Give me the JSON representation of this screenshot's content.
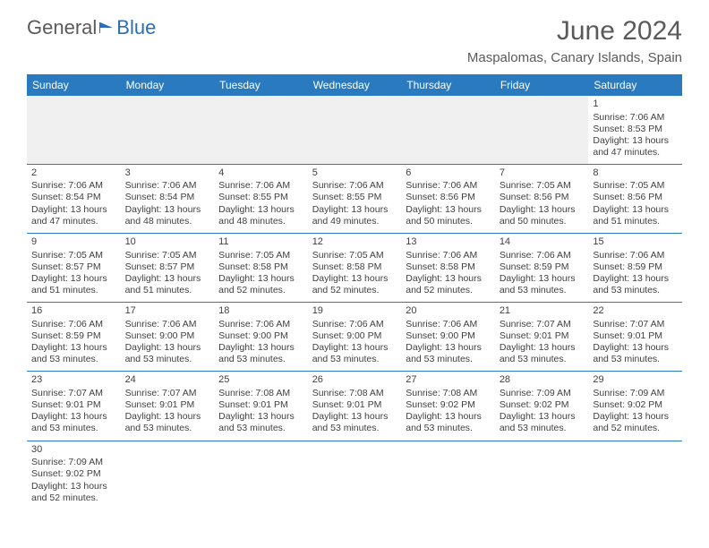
{
  "logo": {
    "text1": "General",
    "text2": "Blue"
  },
  "title": "June 2024",
  "location": "Maspalomas, Canary Islands, Spain",
  "header_bg": "#2a7ac0",
  "header_fg": "#ffffff",
  "border_color": "#2a7ac0",
  "text_color": "#404040",
  "title_color": "#5a5a5a",
  "blank_bg": "#f0f0f0",
  "weekdays": [
    "Sunday",
    "Monday",
    "Tuesday",
    "Wednesday",
    "Thursday",
    "Friday",
    "Saturday"
  ],
  "weeks": [
    [
      null,
      null,
      null,
      null,
      null,
      null,
      {
        "d": "1",
        "sr": "7:06 AM",
        "ss": "8:53 PM",
        "dl": "13 hours and 47 minutes."
      }
    ],
    [
      {
        "d": "2",
        "sr": "7:06 AM",
        "ss": "8:54 PM",
        "dl": "13 hours and 47 minutes."
      },
      {
        "d": "3",
        "sr": "7:06 AM",
        "ss": "8:54 PM",
        "dl": "13 hours and 48 minutes."
      },
      {
        "d": "4",
        "sr": "7:06 AM",
        "ss": "8:55 PM",
        "dl": "13 hours and 48 minutes."
      },
      {
        "d": "5",
        "sr": "7:06 AM",
        "ss": "8:55 PM",
        "dl": "13 hours and 49 minutes."
      },
      {
        "d": "6",
        "sr": "7:06 AM",
        "ss": "8:56 PM",
        "dl": "13 hours and 50 minutes."
      },
      {
        "d": "7",
        "sr": "7:05 AM",
        "ss": "8:56 PM",
        "dl": "13 hours and 50 minutes."
      },
      {
        "d": "8",
        "sr": "7:05 AM",
        "ss": "8:56 PM",
        "dl": "13 hours and 51 minutes."
      }
    ],
    [
      {
        "d": "9",
        "sr": "7:05 AM",
        "ss": "8:57 PM",
        "dl": "13 hours and 51 minutes."
      },
      {
        "d": "10",
        "sr": "7:05 AM",
        "ss": "8:57 PM",
        "dl": "13 hours and 51 minutes."
      },
      {
        "d": "11",
        "sr": "7:05 AM",
        "ss": "8:58 PM",
        "dl": "13 hours and 52 minutes."
      },
      {
        "d": "12",
        "sr": "7:05 AM",
        "ss": "8:58 PM",
        "dl": "13 hours and 52 minutes."
      },
      {
        "d": "13",
        "sr": "7:06 AM",
        "ss": "8:58 PM",
        "dl": "13 hours and 52 minutes."
      },
      {
        "d": "14",
        "sr": "7:06 AM",
        "ss": "8:59 PM",
        "dl": "13 hours and 53 minutes."
      },
      {
        "d": "15",
        "sr": "7:06 AM",
        "ss": "8:59 PM",
        "dl": "13 hours and 53 minutes."
      }
    ],
    [
      {
        "d": "16",
        "sr": "7:06 AM",
        "ss": "8:59 PM",
        "dl": "13 hours and 53 minutes."
      },
      {
        "d": "17",
        "sr": "7:06 AM",
        "ss": "9:00 PM",
        "dl": "13 hours and 53 minutes."
      },
      {
        "d": "18",
        "sr": "7:06 AM",
        "ss": "9:00 PM",
        "dl": "13 hours and 53 minutes."
      },
      {
        "d": "19",
        "sr": "7:06 AM",
        "ss": "9:00 PM",
        "dl": "13 hours and 53 minutes."
      },
      {
        "d": "20",
        "sr": "7:06 AM",
        "ss": "9:00 PM",
        "dl": "13 hours and 53 minutes."
      },
      {
        "d": "21",
        "sr": "7:07 AM",
        "ss": "9:01 PM",
        "dl": "13 hours and 53 minutes."
      },
      {
        "d": "22",
        "sr": "7:07 AM",
        "ss": "9:01 PM",
        "dl": "13 hours and 53 minutes."
      }
    ],
    [
      {
        "d": "23",
        "sr": "7:07 AM",
        "ss": "9:01 PM",
        "dl": "13 hours and 53 minutes."
      },
      {
        "d": "24",
        "sr": "7:07 AM",
        "ss": "9:01 PM",
        "dl": "13 hours and 53 minutes."
      },
      {
        "d": "25",
        "sr": "7:08 AM",
        "ss": "9:01 PM",
        "dl": "13 hours and 53 minutes."
      },
      {
        "d": "26",
        "sr": "7:08 AM",
        "ss": "9:01 PM",
        "dl": "13 hours and 53 minutes."
      },
      {
        "d": "27",
        "sr": "7:08 AM",
        "ss": "9:02 PM",
        "dl": "13 hours and 53 minutes."
      },
      {
        "d": "28",
        "sr": "7:09 AM",
        "ss": "9:02 PM",
        "dl": "13 hours and 53 minutes."
      },
      {
        "d": "29",
        "sr": "7:09 AM",
        "ss": "9:02 PM",
        "dl": "13 hours and 52 minutes."
      }
    ],
    [
      {
        "d": "30",
        "sr": "7:09 AM",
        "ss": "9:02 PM",
        "dl": "13 hours and 52 minutes."
      },
      null,
      null,
      null,
      null,
      null,
      null
    ]
  ],
  "labels": {
    "sunrise": "Sunrise:",
    "sunset": "Sunset:",
    "daylight": "Daylight:"
  }
}
